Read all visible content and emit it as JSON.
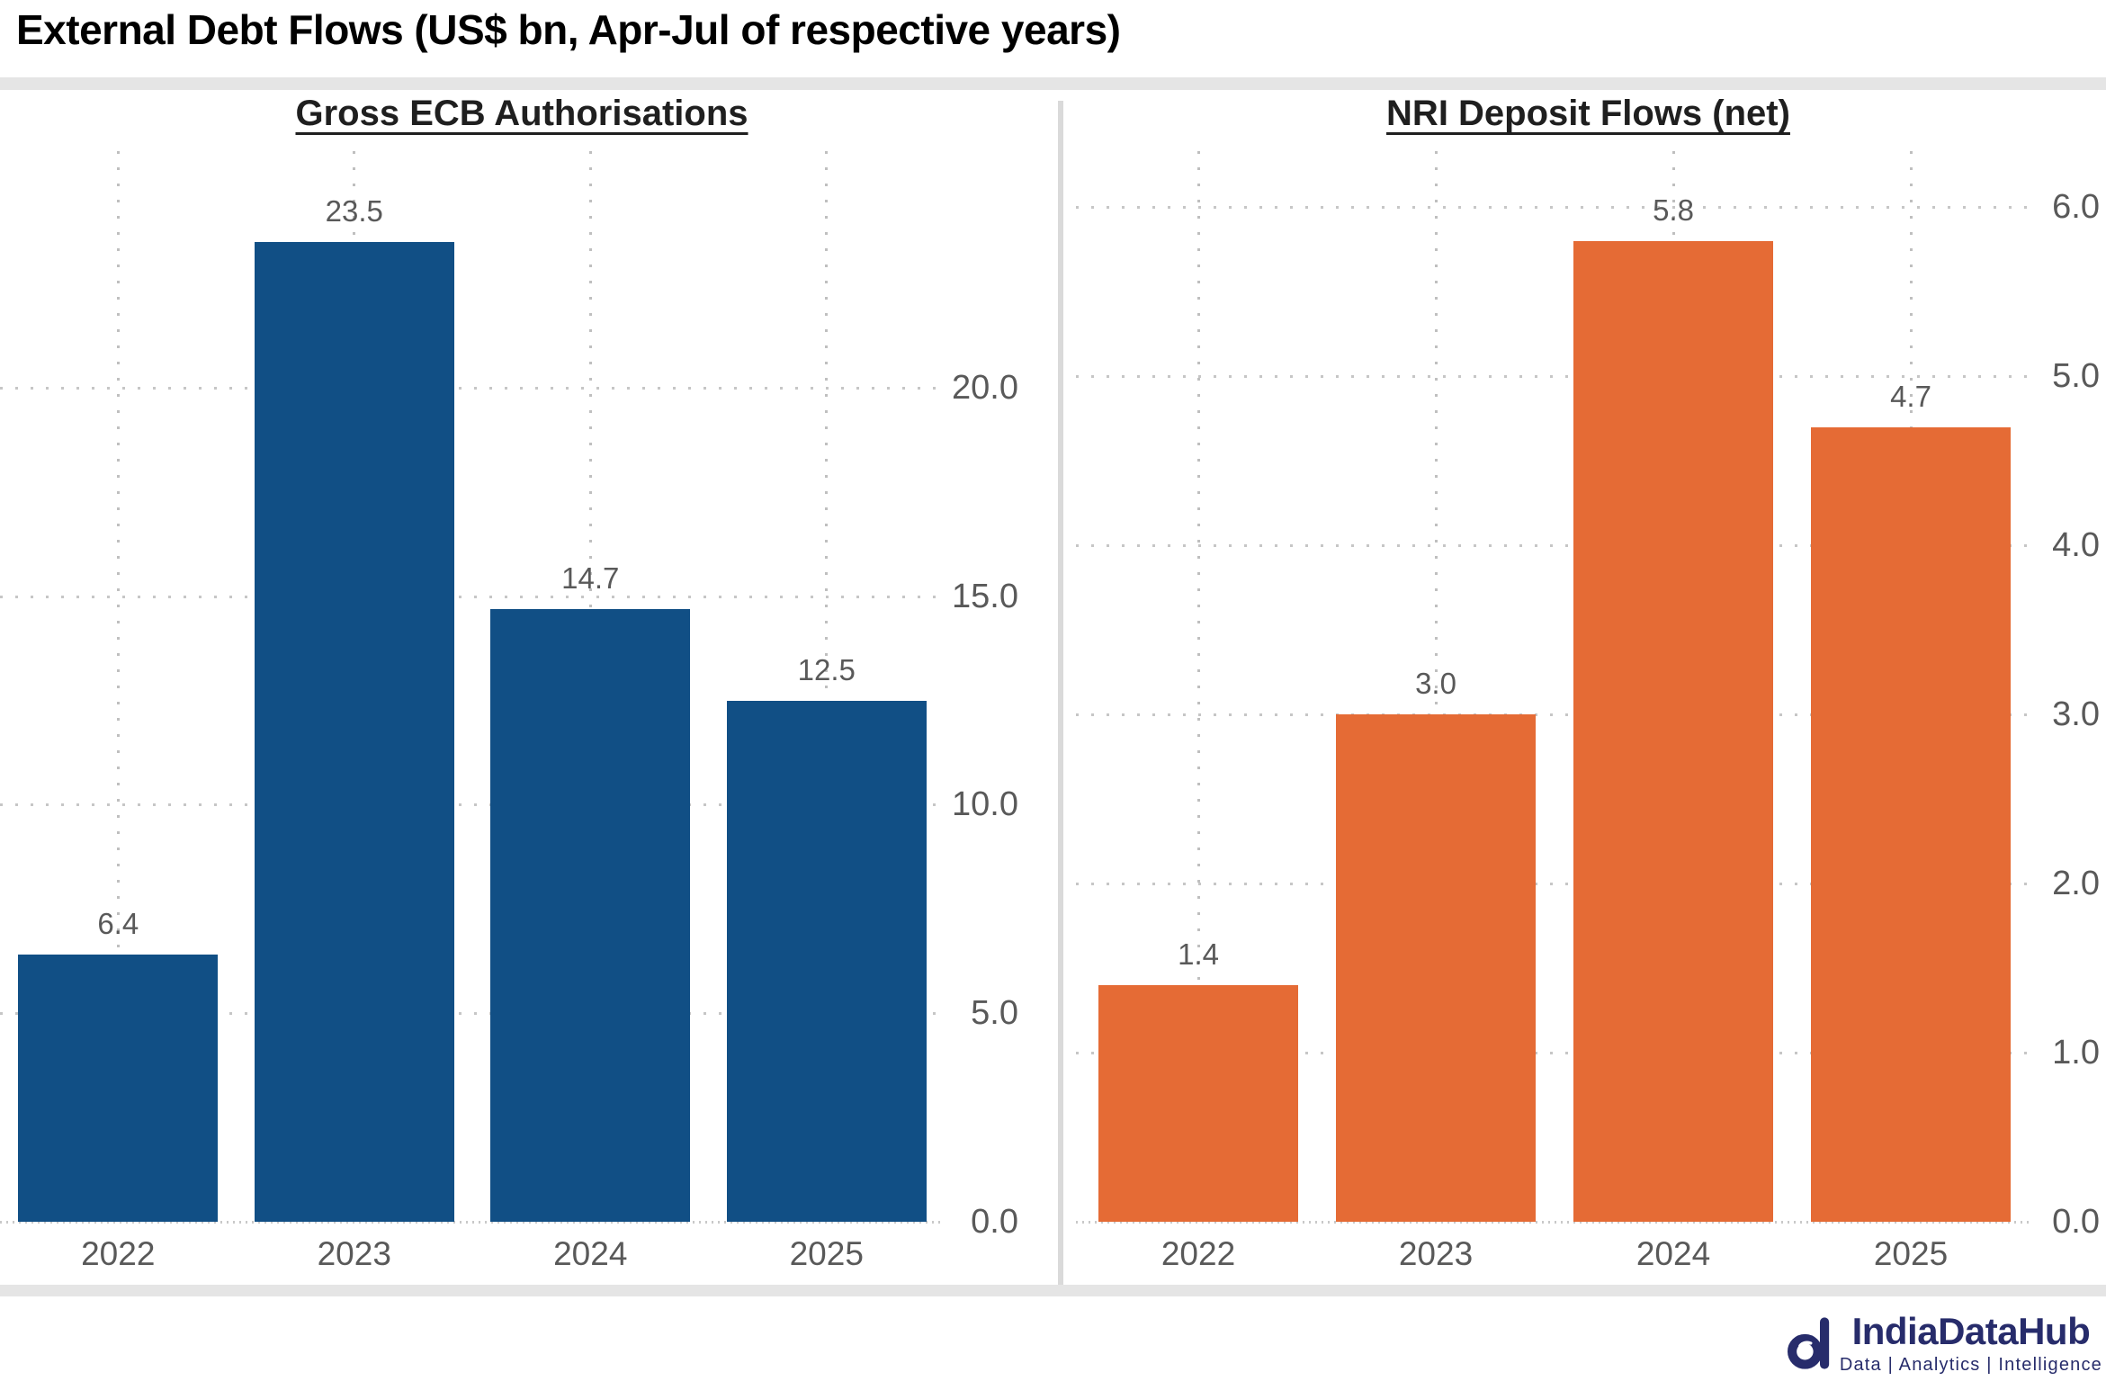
{
  "title": "External Debt Flows (US$ bn, Apr-Jul of respective years)",
  "chart_data": [
    {
      "type": "bar",
      "title": "Gross ECB Authorisations",
      "categories": [
        "2022",
        "2023",
        "2024",
        "2025"
      ],
      "values": [
        6.4,
        23.5,
        14.7,
        12.5
      ],
      "data_labels": [
        "6.4",
        "23.5",
        "14.7",
        "12.5"
      ],
      "bar_color": "#114F85",
      "yticks": [
        0,
        5,
        10,
        15,
        20
      ],
      "ytick_labels": [
        "0.0",
        "5.0",
        "10.0",
        "15.0",
        "20.0"
      ],
      "ylim": [
        0,
        26.6
      ],
      "xlabel": "",
      "ylabel": "",
      "axis_side": "right",
      "grid": "dotted",
      "legend": "none"
    },
    {
      "type": "bar",
      "title": "NRI Deposit Flows (net)",
      "categories": [
        "2022",
        "2023",
        "2024",
        "2025"
      ],
      "values": [
        1.4,
        3.0,
        5.8,
        4.7
      ],
      "data_labels": [
        "1.4",
        "3.0",
        "5.8",
        "4.7"
      ],
      "bar_color": "#E56B35",
      "yticks": [
        0,
        1,
        2,
        3,
        4,
        5,
        6
      ],
      "ytick_labels": [
        "0.0",
        "1.0",
        "2.0",
        "3.0",
        "4.0",
        "5.0",
        "6.0"
      ],
      "ylim": [
        0,
        6.56
      ],
      "xlabel": "",
      "ylabel": "",
      "axis_side": "right",
      "grid": "dotted",
      "legend": "none"
    }
  ],
  "colors": {
    "blue_bar": "#114F85",
    "orange_bar": "#E56B35",
    "axis_text": "#595959",
    "grid_dot": "#C6C6C6",
    "divider": "#DADADA",
    "logo_navy": "#272C6B"
  },
  "footer": {
    "brand": "IndiaDataHub",
    "tagline": "Data | Analytics | Intelligence"
  }
}
